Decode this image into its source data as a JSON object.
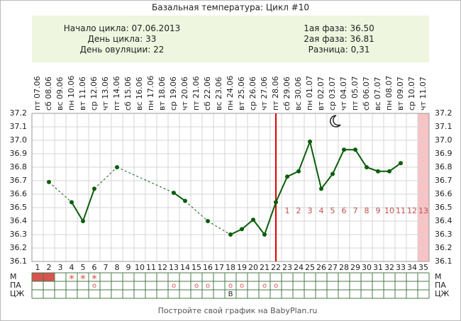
{
  "header": {
    "title": "Базальная температура: Цикл #10"
  },
  "info": {
    "left": [
      {
        "label": "Начало цикла:",
        "value": "07.06.2013"
      },
      {
        "label": "День цикла:",
        "value": "33"
      },
      {
        "label": "День овуляции:",
        "value": "22"
      }
    ],
    "right": [
      {
        "label": "1ая фаза:",
        "value": "36.50"
      },
      {
        "label": "2ая фаза:",
        "value": "36.81"
      },
      {
        "label": "Разница:",
        "value": "0,31"
      }
    ]
  },
  "chart_data": {
    "type": "line",
    "categories": [
      1,
      2,
      3,
      4,
      5,
      6,
      7,
      8,
      9,
      10,
      11,
      12,
      13,
      14,
      15,
      16,
      17,
      18,
      19,
      20,
      21,
      22,
      23,
      24,
      25,
      26,
      27,
      28,
      29,
      30,
      31,
      32,
      33,
      34,
      35
    ],
    "weekdays": [
      "пт",
      "сб",
      "вс",
      "пн",
      "вт",
      "ср",
      "чт",
      "пт",
      "сб",
      "вс",
      "пн",
      "вт",
      "ср",
      "чт",
      "пт",
      "сб",
      "вс",
      "пн",
      "вт",
      "ср",
      "чт",
      "пт",
      "сб",
      "вс",
      "пн",
      "вт",
      "ср",
      "чт",
      "пт",
      "сб",
      "вс",
      "пн",
      "вт",
      "ср",
      "чт"
    ],
    "dates": [
      "07.06",
      "08.06",
      "09.06",
      "10.06",
      "11.06",
      "12.06",
      "13.06",
      "14.06",
      "15.06",
      "16.06",
      "17.06",
      "18.06",
      "19.06",
      "20.06",
      "21.06",
      "22.06",
      "23.06",
      "24.06",
      "25.06",
      "26.06",
      "27.06",
      "28.06",
      "29.06",
      "30.06",
      "01.07",
      "02.07",
      "03.07",
      "04.07",
      "05.07",
      "06.07",
      "07.07",
      "08.07",
      "09.07",
      "10.07",
      "11.07"
    ],
    "values": [
      null,
      36.69,
      null,
      36.54,
      36.4,
      36.64,
      null,
      36.8,
      null,
      null,
      null,
      null,
      36.61,
      36.55,
      null,
      36.4,
      null,
      36.3,
      36.34,
      36.41,
      36.3,
      36.54,
      36.73,
      36.77,
      36.99,
      36.64,
      36.75,
      36.93,
      36.93,
      36.8,
      36.77,
      36.77,
      36.83,
      null,
      null
    ],
    "color": "#0b5e0b",
    "ylim": [
      36.1,
      37.2
    ],
    "yticks": [
      36.1,
      36.2,
      36.3,
      36.4,
      36.5,
      36.6,
      36.7,
      36.8,
      36.9,
      {
        "value": 37.0,
        "label": "37.0"
      },
      37.1,
      37.2
    ],
    "grid": true,
    "ovulation_day": 22,
    "phase2_labels": [
      1,
      2,
      3,
      4,
      5,
      6,
      7,
      8,
      9,
      10,
      11,
      12,
      13
    ],
    "highlight_days": [
      35
    ]
  },
  "rows": [
    {
      "label": "М",
      "filled_days": [
        1,
        2
      ],
      "symbols": [
        {
          "day": 4,
          "text": "*"
        },
        {
          "day": 5,
          "text": "*"
        },
        {
          "day": 6,
          "text": "*"
        }
      ]
    },
    {
      "label": "ПА",
      "filled_days": [],
      "symbols": [
        {
          "day": 6,
          "text": "o"
        },
        {
          "day": 13,
          "text": "o"
        },
        {
          "day": 15,
          "text": "o"
        },
        {
          "day": 16,
          "text": "o"
        },
        {
          "day": 18,
          "text": "o"
        },
        {
          "day": 19,
          "text": "o"
        },
        {
          "day": 21,
          "text": "o"
        },
        {
          "day": 22,
          "text": "o"
        }
      ]
    },
    {
      "label": "ЦЖ",
      "filled_days": [],
      "symbols": [
        {
          "day": 18,
          "text": "В"
        }
      ]
    }
  ],
  "footer": {
    "text": "Постройте свой график на BabyPlan.ru"
  }
}
